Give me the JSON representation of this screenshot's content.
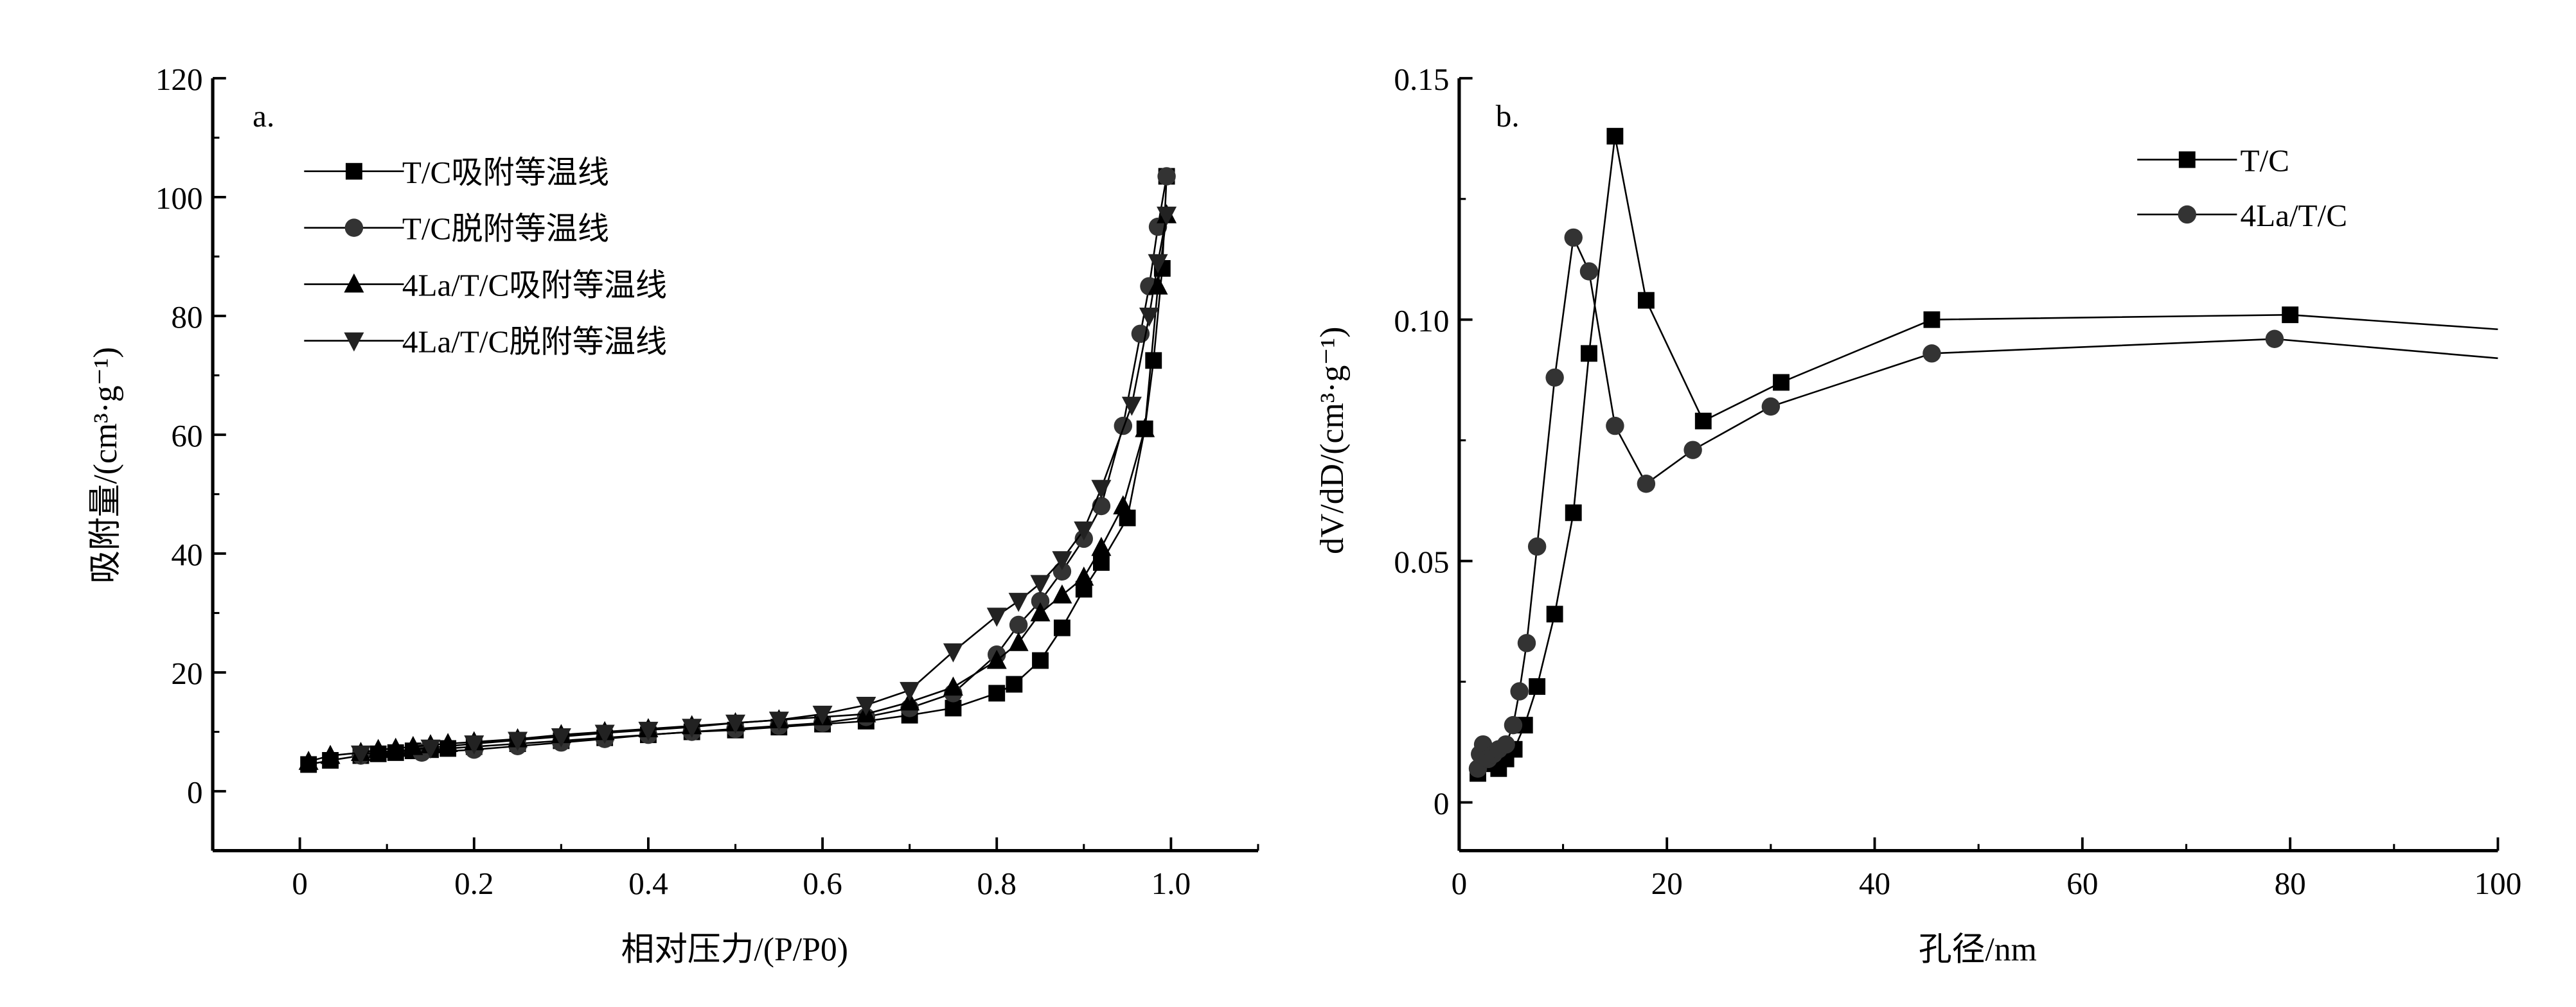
{
  "chart_data": [
    {
      "type": "scatter",
      "panel_label": "a.",
      "xlabel": "相对压力/(P/P0)",
      "ylabel": "吸附量/(cm³·g⁻¹)",
      "xlim": [
        -0.1,
        1.1
      ],
      "ylim": [
        -10,
        120
      ],
      "xticks": [
        0,
        0.2,
        0.4,
        0.6,
        0.8,
        1.0
      ],
      "xtick_labels": [
        "0",
        "0.2",
        "0.4",
        "0.6",
        "0.8",
        "1.0"
      ],
      "yticks": [
        0,
        20,
        40,
        60,
        80,
        100,
        120
      ],
      "ytick_labels": [
        "0",
        "20",
        "40",
        "60",
        "80",
        "100",
        "120"
      ],
      "grid": false,
      "legend_position": "top-left",
      "series": [
        {
          "name": "T/C吸附等温线",
          "marker": "square",
          "color": "#000000",
          "x": [
            0.01,
            0.035,
            0.07,
            0.09,
            0.11,
            0.13,
            0.15,
            0.17,
            0.2,
            0.25,
            0.3,
            0.35,
            0.4,
            0.45,
            0.5,
            0.55,
            0.6,
            0.65,
            0.7,
            0.75,
            0.8,
            0.82,
            0.85,
            0.875,
            0.9,
            0.92,
            0.95,
            0.97,
            0.98,
            0.99,
            0.995
          ],
          "y": [
            4.5,
            5.2,
            6,
            6.3,
            6.5,
            6.8,
            7,
            7.2,
            7.5,
            8,
            8.5,
            9,
            9.5,
            10,
            10.3,
            10.8,
            11.3,
            11.8,
            12.8,
            14,
            16.5,
            18,
            22,
            27.5,
            34,
            38.5,
            46,
            61,
            72.5,
            88,
            103.5
          ]
        },
        {
          "name": "T/C脱附等温线",
          "marker": "circle",
          "color": "#333333",
          "x": [
            0.995,
            0.985,
            0.975,
            0.965,
            0.945,
            0.92,
            0.9,
            0.875,
            0.85,
            0.825,
            0.8,
            0.75,
            0.7,
            0.65,
            0.6,
            0.55,
            0.5,
            0.45,
            0.4,
            0.35,
            0.3,
            0.25,
            0.2,
            0.14,
            0.07
          ],
          "y": [
            103.5,
            95,
            85,
            77,
            61.5,
            48,
            42.5,
            37,
            32,
            28,
            23,
            16.5,
            14,
            12.5,
            11.5,
            11,
            10.5,
            10,
            9.5,
            8.8,
            8.2,
            7.6,
            7,
            6.5,
            6
          ]
        },
        {
          "name": "4La/T/C吸附等温线",
          "marker": "triangle-up",
          "color": "#000000",
          "x": [
            0.01,
            0.035,
            0.07,
            0.09,
            0.11,
            0.13,
            0.15,
            0.17,
            0.2,
            0.25,
            0.3,
            0.35,
            0.4,
            0.45,
            0.5,
            0.55,
            0.6,
            0.65,
            0.7,
            0.75,
            0.8,
            0.825,
            0.85,
            0.875,
            0.9,
            0.92,
            0.945,
            0.97,
            0.985,
            0.995
          ],
          "y": [
            5,
            6,
            6.5,
            7,
            7.2,
            7.5,
            7.8,
            8,
            8.3,
            8.8,
            9.5,
            10,
            10.5,
            11,
            11.5,
            12,
            12.5,
            13,
            15,
            17.5,
            22,
            25,
            30,
            33,
            36,
            41,
            48,
            61,
            85,
            97
          ]
        },
        {
          "name": "4La/T/C脱附等温线",
          "marker": "triangle-down",
          "color": "#222222",
          "x": [
            0.995,
            0.985,
            0.975,
            0.955,
            0.92,
            0.9,
            0.875,
            0.85,
            0.825,
            0.8,
            0.75,
            0.7,
            0.65,
            0.6,
            0.55,
            0.5,
            0.45,
            0.4,
            0.35,
            0.3,
            0.25,
            0.2,
            0.15,
            0.07
          ],
          "y": [
            97,
            89,
            80,
            65,
            51,
            44,
            39,
            35,
            32,
            29.5,
            23.5,
            17,
            14.5,
            13,
            12,
            11.5,
            10.8,
            10.3,
            9.8,
            9.2,
            8.6,
            8,
            7.3,
            6.3
          ]
        }
      ]
    },
    {
      "type": "line",
      "panel_label": "b.",
      "xlabel": "孔径/nm",
      "ylabel": "dV/dD/(cm³·g⁻¹)",
      "xlim": [
        0,
        100
      ],
      "ylim": [
        -0.01,
        0.15
      ],
      "xticks": [
        0,
        20,
        40,
        60,
        80,
        100
      ],
      "xtick_labels": [
        "0",
        "20",
        "40",
        "60",
        "80",
        "100"
      ],
      "yticks": [
        0,
        0.05,
        0.1,
        0.15
      ],
      "ytick_labels": [
        "0",
        "0.05",
        "0.10",
        "0.15"
      ],
      "grid": false,
      "legend_position": "top-right",
      "series": [
        {
          "name": "T/C",
          "marker": "square",
          "color": "#000000",
          "x": [
            1.8,
            2.5,
            3,
            3.8,
            4.5,
            5.3,
            6.3,
            7.5,
            9.2,
            11,
            12.5,
            15,
            18,
            23.5,
            31,
            45.5,
            80,
            100
          ],
          "y": [
            0.006,
            0.008,
            0.009,
            0.007,
            0.009,
            0.011,
            0.016,
            0.024,
            0.039,
            0.06,
            0.093,
            0.138,
            0.104,
            0.079,
            0.087,
            0.1,
            0.101,
            0.098
          ]
        },
        {
          "name": "4La/T/C",
          "marker": "circle",
          "color": "#333333",
          "x": [
            1.8,
            2,
            2.3,
            2.8,
            3.3,
            3.8,
            4.5,
            5.2,
            5.8,
            6.5,
            7.5,
            9.2,
            11,
            12.5,
            15,
            18,
            22.5,
            30,
            45.5,
            78.5,
            100
          ],
          "y": [
            0.007,
            0.01,
            0.012,
            0.009,
            0.01,
            0.011,
            0.012,
            0.016,
            0.023,
            0.033,
            0.053,
            0.088,
            0.117,
            0.11,
            0.078,
            0.066,
            0.073,
            0.082,
            0.093,
            0.096,
            0.092
          ]
        }
      ]
    }
  ]
}
